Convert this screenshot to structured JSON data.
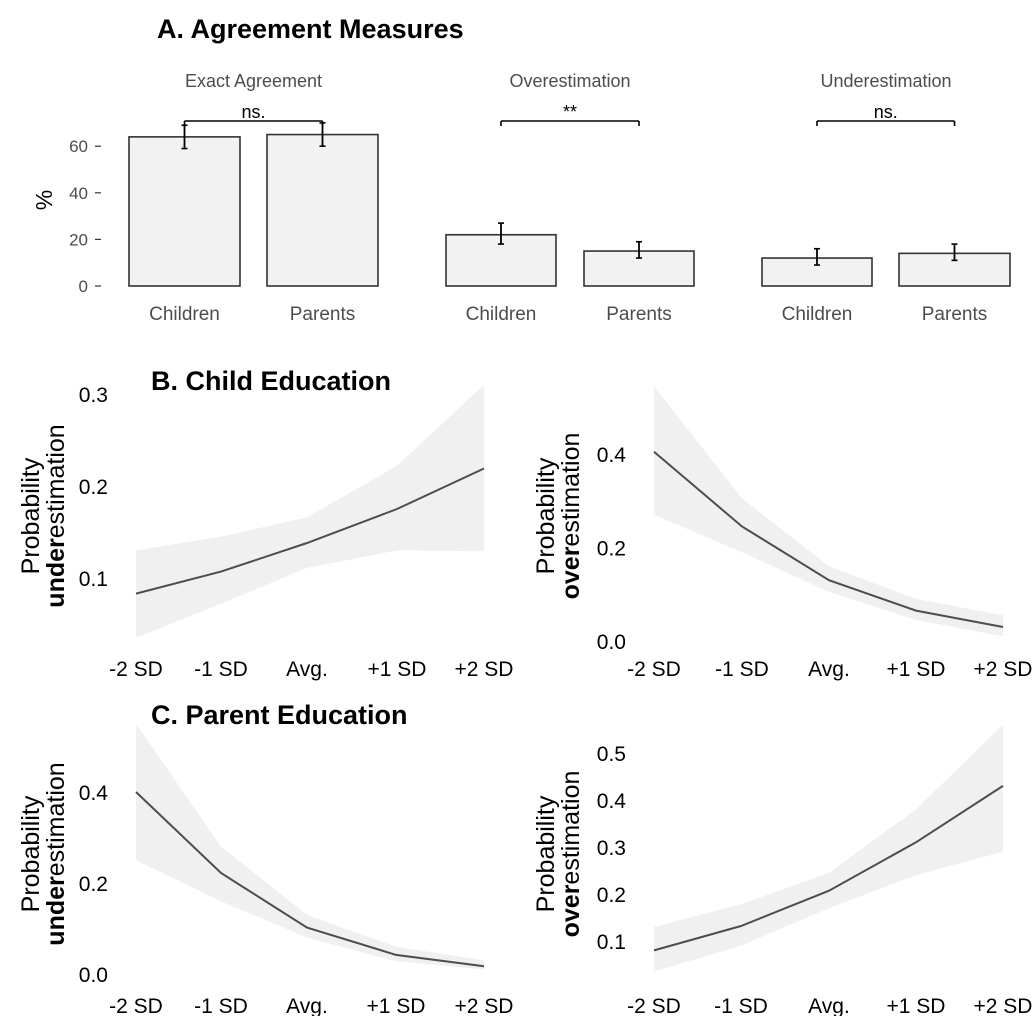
{
  "chart_data": [
    {
      "type": "bar",
      "title": "A. Agreement Measures",
      "ylabel": "%",
      "ylim": [
        0,
        70
      ],
      "yticks": [
        "0",
        "20",
        "40",
        "60"
      ],
      "facets": [
        {
          "label": "Exact Agreement",
          "categories": [
            "Children",
            "Parents"
          ],
          "values": [
            64,
            65
          ],
          "error_low": [
            59,
            60
          ],
          "error_high": [
            69,
            70
          ],
          "significance": "ns."
        },
        {
          "label": "Overestimation",
          "categories": [
            "Children",
            "Parents"
          ],
          "values": [
            22,
            15
          ],
          "error_low": [
            18,
            12
          ],
          "error_high": [
            27,
            19
          ],
          "significance": "**"
        },
        {
          "label": "Underestimation",
          "categories": [
            "Children",
            "Parents"
          ],
          "values": [
            12,
            14
          ],
          "error_low": [
            9,
            11
          ],
          "error_high": [
            16,
            18
          ],
          "significance": "ns."
        }
      ],
      "legend": "none",
      "grid": false
    },
    {
      "type": "line",
      "title": "B. Child Education",
      "xlabel": "",
      "x": [
        "-2 SD",
        "-1 SD",
        "Avg.",
        "+1 SD",
        "+2 SD"
      ],
      "ylabel_pre": "Probability",
      "ylabel_bold": "under",
      "ylabel_rest": "estimation",
      "yticks": [
        "0.1",
        "0.2",
        "0.3"
      ],
      "ylim": [
        0.03,
        0.31
      ],
      "y": [
        0.083,
        0.107,
        0.138,
        0.175,
        0.219
      ],
      "ci_low": [
        0.035,
        0.072,
        0.111,
        0.13,
        0.129
      ],
      "ci_high": [
        0.13,
        0.145,
        0.166,
        0.222,
        0.31
      ],
      "grid": false
    },
    {
      "type": "line",
      "title": "",
      "xlabel": "",
      "x": [
        "-2 SD",
        "-1 SD",
        "Avg.",
        "+1 SD",
        "+2 SD"
      ],
      "ylabel_pre": "Probability",
      "ylabel_bold": "over",
      "ylabel_rest": "estimation",
      "yticks": [
        "0.0",
        "0.2",
        "0.4"
      ],
      "ylim": [
        0.0,
        0.55
      ],
      "y": [
        0.405,
        0.245,
        0.13,
        0.065,
        0.03
      ],
      "ci_low": [
        0.27,
        0.19,
        0.105,
        0.045,
        0.01
      ],
      "ci_high": [
        0.545,
        0.305,
        0.16,
        0.09,
        0.055
      ],
      "grid": false
    },
    {
      "type": "line",
      "title": "C. Parent Education",
      "xlabel": "",
      "x": [
        "-2 SD",
        "-1 SD",
        "Avg.",
        "+1 SD",
        "+2 SD"
      ],
      "ylabel_pre": "Probability",
      "ylabel_bold": "under",
      "ylabel_rest": "estimation",
      "yticks": [
        "0.0",
        "0.2",
        "0.4"
      ],
      "ylim": [
        0.0,
        0.55
      ],
      "y": [
        0.4,
        0.222,
        0.102,
        0.042,
        0.017
      ],
      "ci_low": [
        0.25,
        0.16,
        0.08,
        0.028,
        0.01
      ],
      "ci_high": [
        0.55,
        0.28,
        0.13,
        0.06,
        0.03
      ],
      "grid": false
    },
    {
      "type": "line",
      "title": "",
      "xlabel": "",
      "x": [
        "-2 SD",
        "-1 SD",
        "Avg.",
        "+1 SD",
        "+2 SD"
      ],
      "ylabel_pre": "Probability",
      "ylabel_bold": "over",
      "ylabel_rest": "estimation",
      "yticks": [
        "0.1",
        "0.2",
        "0.3",
        "0.4",
        "0.5"
      ],
      "ylim": [
        0.03,
        0.56
      ],
      "y": [
        0.08,
        0.132,
        0.207,
        0.31,
        0.43
      ],
      "ci_low": [
        0.035,
        0.09,
        0.17,
        0.24,
        0.29
      ],
      "ci_high": [
        0.13,
        0.178,
        0.245,
        0.38,
        0.56
      ],
      "grid": false
    }
  ],
  "colors": {
    "bar_fill": "#f2f2f2",
    "bar_stroke": "#333333",
    "line": "#4d4d4d",
    "ribbon": "#f0f0f0",
    "text_muted": "#4d4d4d"
  }
}
